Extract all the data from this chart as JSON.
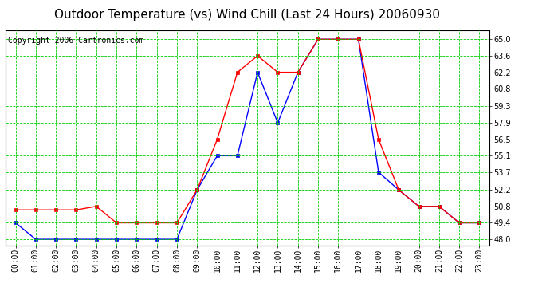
{
  "title": "Outdoor Temperature (vs) Wind Chill (Last 24 Hours) 20060930",
  "copyright": "Copyright 2006 Cartronics.com",
  "hours": [
    0,
    1,
    2,
    3,
    4,
    5,
    6,
    7,
    8,
    9,
    10,
    11,
    12,
    13,
    14,
    15,
    16,
    17,
    18,
    19,
    20,
    21,
    22,
    23
  ],
  "temp": [
    50.5,
    50.5,
    50.5,
    50.5,
    50.8,
    49.4,
    49.4,
    49.4,
    49.4,
    52.2,
    56.5,
    62.2,
    63.6,
    62.2,
    62.2,
    65.0,
    65.0,
    65.0,
    56.5,
    52.2,
    50.8,
    50.8,
    49.4,
    49.4
  ],
  "windchill": [
    49.4,
    48.0,
    48.0,
    48.0,
    48.0,
    48.0,
    48.0,
    48.0,
    48.0,
    52.2,
    55.1,
    55.1,
    62.2,
    57.9,
    62.2,
    65.0,
    65.0,
    65.0,
    53.7,
    52.2,
    50.8,
    50.8,
    49.4,
    49.4
  ],
  "ylim_min": 47.5,
  "ylim_max": 65.8,
  "yticks": [
    48.0,
    49.4,
    50.8,
    52.2,
    53.7,
    55.1,
    56.5,
    57.9,
    59.3,
    60.8,
    62.2,
    63.6,
    65.0
  ],
  "temp_color": "#ff0000",
  "windchill_color": "#0000ff",
  "bg_color": "#ffffff",
  "plot_bg_color": "#ffffff",
  "grid_color": "#00cc00",
  "border_color": "#000000",
  "title_fontsize": 11,
  "tick_fontsize": 7,
  "copyright_fontsize": 7
}
